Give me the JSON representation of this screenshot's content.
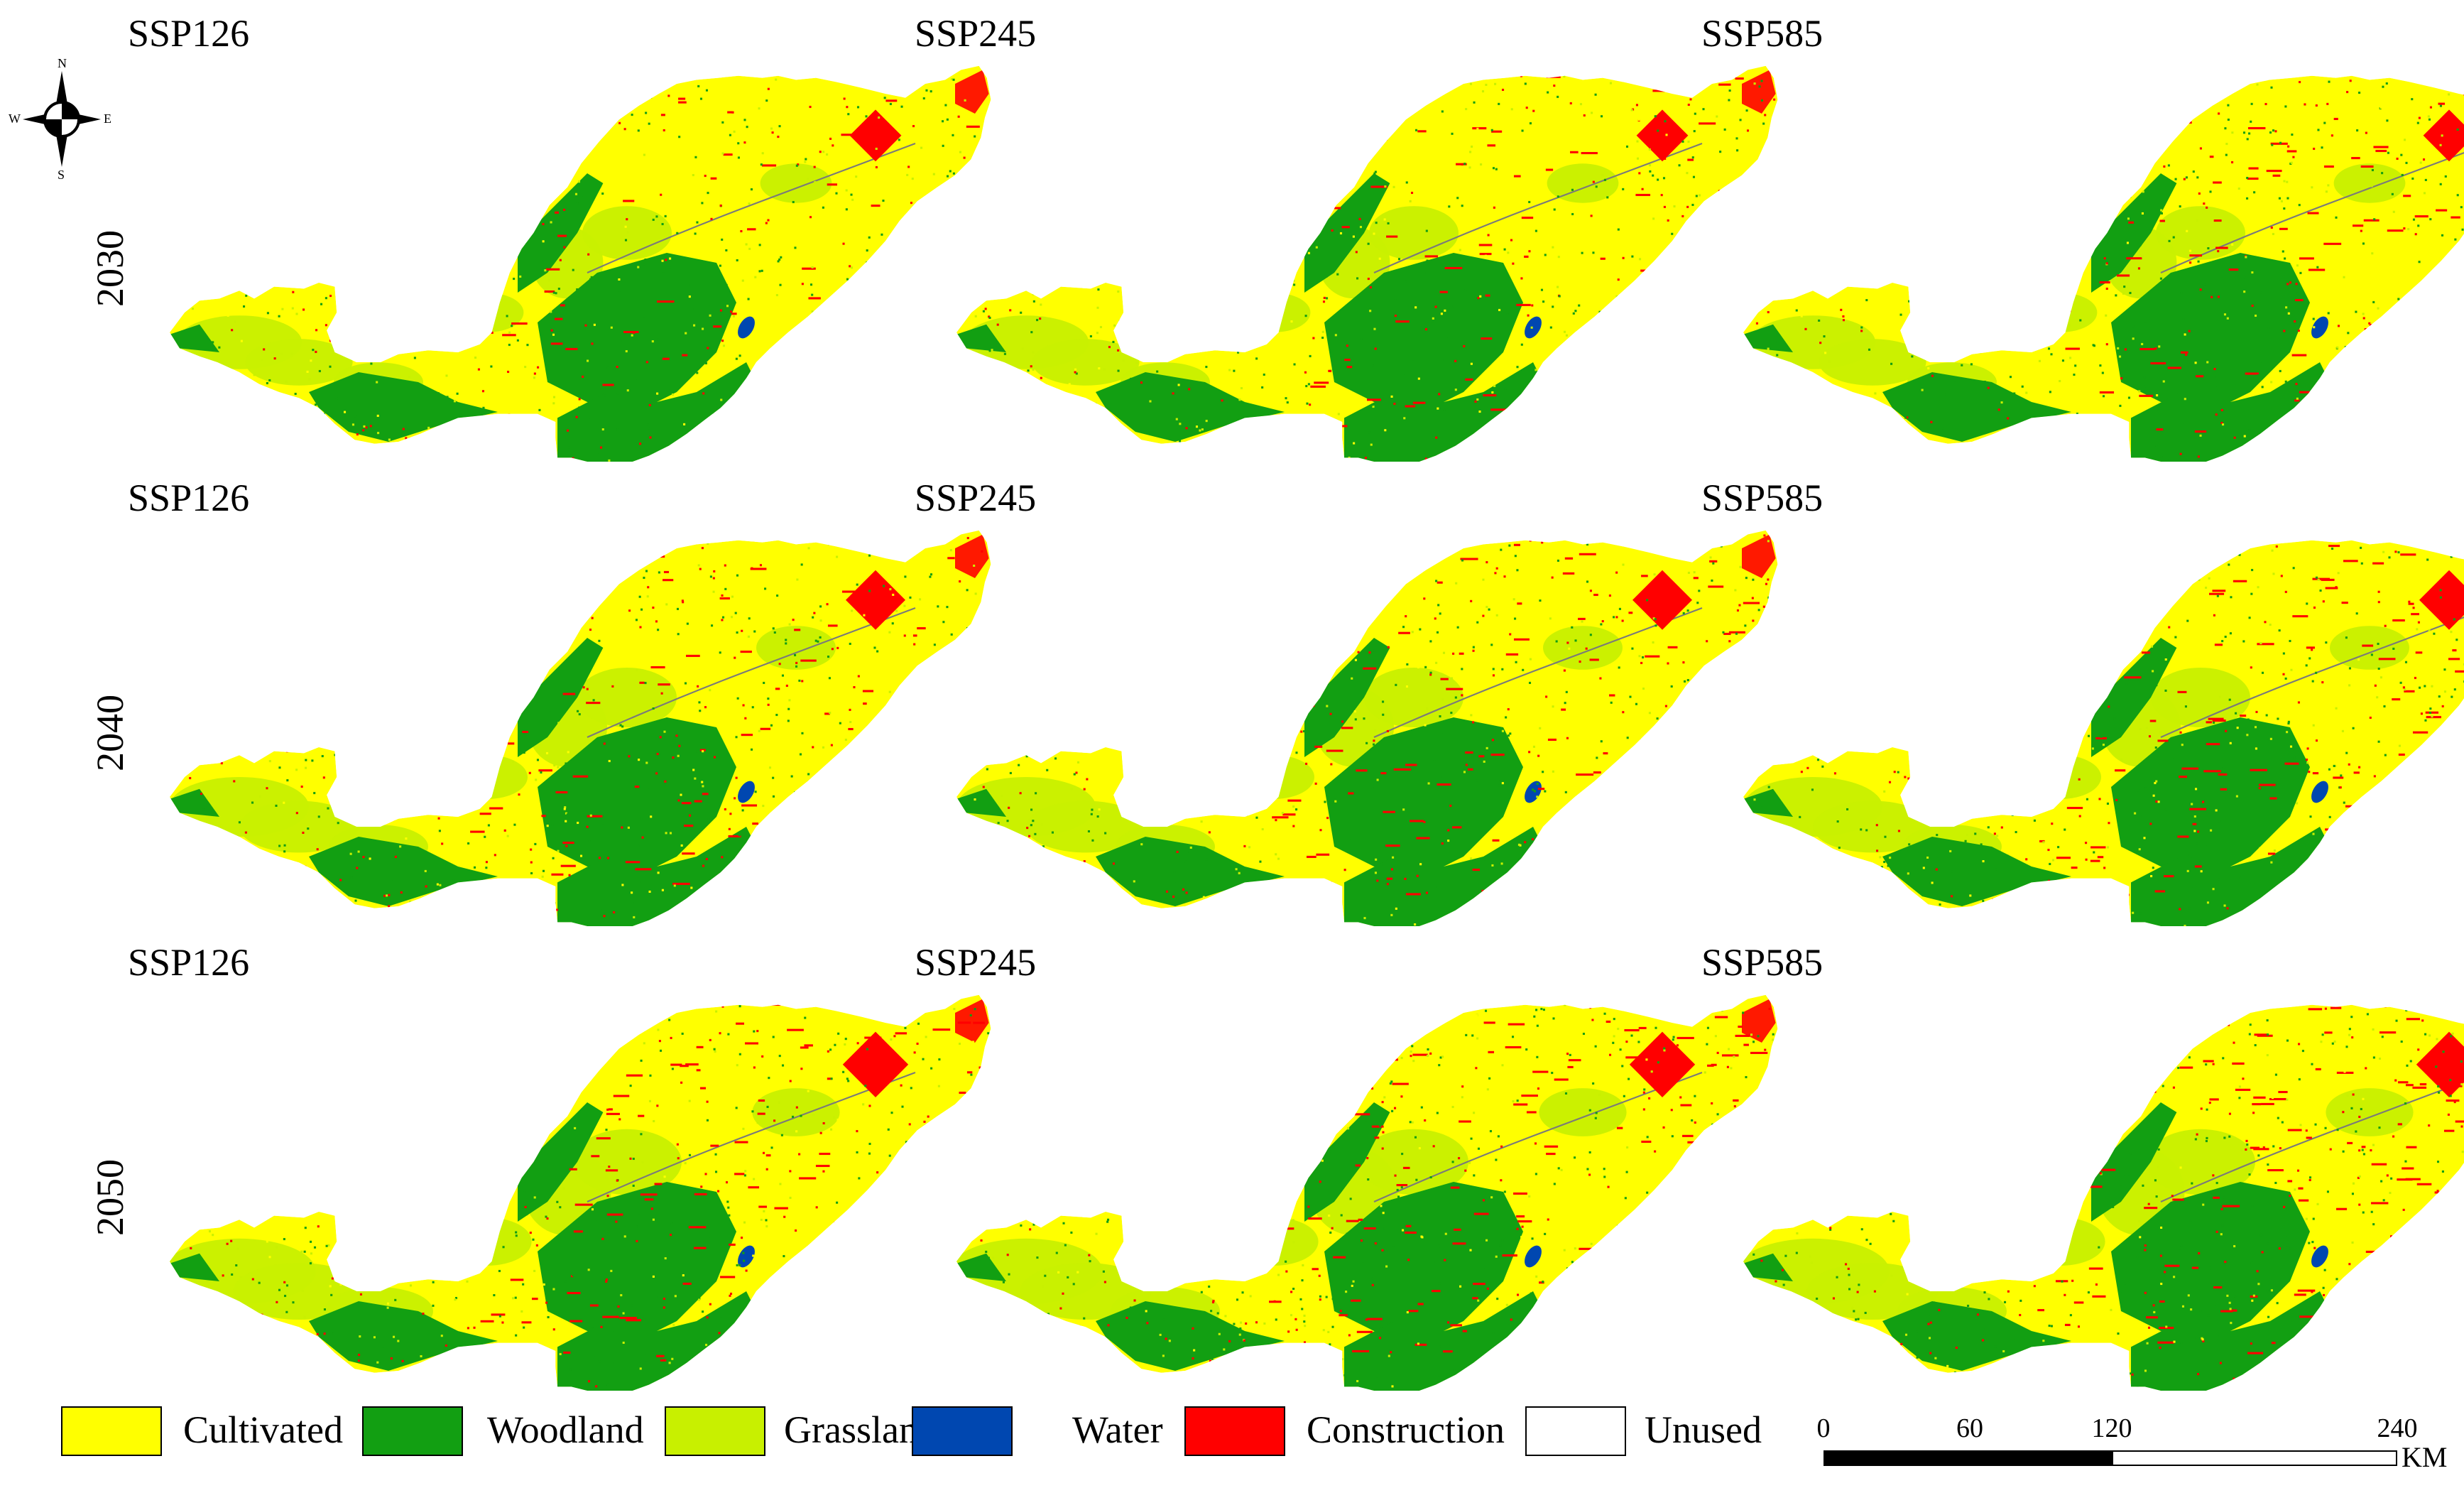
{
  "colors": {
    "cultivated": "#ffff00",
    "woodland": "#129f12",
    "grassland": "#c8f000",
    "water": "#0047b0",
    "construction": "#ff0000",
    "unused": "#ffffff"
  },
  "rows": [
    {
      "year": "2030",
      "panels": [
        {
          "title": "SSP126"
        },
        {
          "title": "SSP245"
        },
        {
          "title": "SSP585"
        }
      ]
    },
    {
      "year": "2040",
      "panels": [
        {
          "title": "SSP126"
        },
        {
          "title": "SSP245"
        },
        {
          "title": "SSP585"
        }
      ]
    },
    {
      "year": "2050",
      "panels": [
        {
          "title": "SSP126"
        },
        {
          "title": "SSP245"
        },
        {
          "title": "SSP585"
        }
      ]
    }
  ],
  "compass": {
    "north": "N",
    "south": "S",
    "east": "E",
    "west": "W"
  },
  "legend": [
    {
      "label": "Cultivated",
      "color_key": "cultivated"
    },
    {
      "label": "Woodland",
      "color_key": "woodland"
    },
    {
      "label": "Grassland",
      "color_key": "grassland"
    },
    {
      "label": "Water",
      "color_key": "water"
    },
    {
      "label": "Construction",
      "color_key": "construction"
    },
    {
      "label": "Unused",
      "color_key": "unused"
    }
  ],
  "scale_bar": {
    "ticks": [
      "0",
      "60",
      "120",
      "240"
    ],
    "tick_values": [
      0,
      60,
      120,
      240
    ],
    "unit": "KM"
  }
}
